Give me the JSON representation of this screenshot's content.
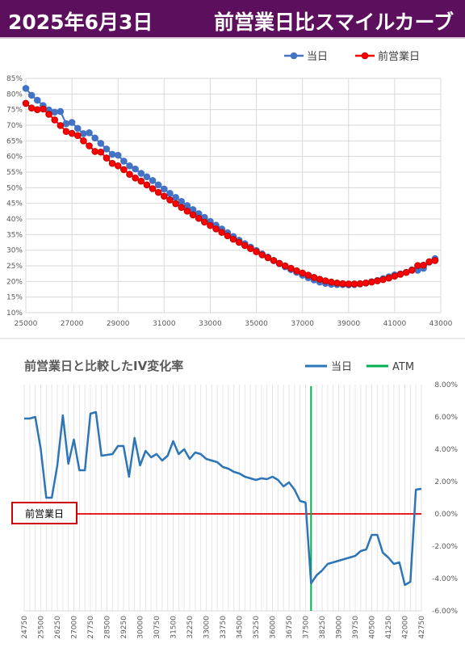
{
  "header": {
    "date": "2025年6月3日",
    "title": "前営業日比スマイルカーブ"
  },
  "chart_data": [
    {
      "type": "scatter",
      "title": "",
      "legend_position": "top-right",
      "xlim": [
        25000,
        43000
      ],
      "ylim": [
        10,
        85
      ],
      "x_ticks": [
        "25000",
        "27000",
        "29000",
        "31000",
        "33000",
        "35000",
        "37000",
        "39000",
        "41000",
        "43000"
      ],
      "y_ticks": [
        "10%",
        "15%",
        "20%",
        "25%",
        "30%",
        "35%",
        "40%",
        "45%",
        "50%",
        "55%",
        "60%",
        "65%",
        "70%",
        "75%",
        "80%",
        "85%"
      ],
      "colors": {
        "today": "#4472c4",
        "previous": "#ff0000"
      },
      "x": [
        25000,
        25250,
        25500,
        25750,
        26000,
        26250,
        26500,
        26750,
        27000,
        27250,
        27500,
        27750,
        28000,
        28250,
        28500,
        28750,
        29000,
        29250,
        29500,
        29750,
        30000,
        30250,
        30500,
        30750,
        31000,
        31250,
        31500,
        31750,
        32000,
        32250,
        32500,
        32750,
        33000,
        33250,
        33500,
        33750,
        34000,
        34250,
        34500,
        34750,
        35000,
        35250,
        35500,
        35750,
        36000,
        36250,
        36500,
        36750,
        37000,
        37250,
        37500,
        37750,
        38000,
        38250,
        38500,
        38750,
        39000,
        39250,
        39500,
        39750,
        40000,
        40250,
        40500,
        40750,
        41000,
        41250,
        41500,
        41750,
        42000,
        42250,
        42500,
        42750
      ],
      "series": [
        {
          "name": "当日",
          "values": [
            81.8,
            79.6,
            78.0,
            76.3,
            74.9,
            74.2,
            74.4,
            70.5,
            70.9,
            69.0,
            67.3,
            67.6,
            65.9,
            64.2,
            62.4,
            60.7,
            60.4,
            58.5,
            57.0,
            56.0,
            54.6,
            53.5,
            52.3,
            50.9,
            49.6,
            48.2,
            46.9,
            45.6,
            44.3,
            43.0,
            41.7,
            40.5,
            39.2,
            38.0,
            36.8,
            35.6,
            34.4,
            33.2,
            32.1,
            31.0,
            29.9,
            28.8,
            27.8,
            26.7,
            25.7,
            24.7,
            23.8,
            22.9,
            22.0,
            21.2,
            20.5,
            19.8,
            19.4,
            19.1,
            19.0,
            19.0,
            18.9,
            19.0,
            19.2,
            19.5,
            19.9,
            20.3,
            20.9,
            21.5,
            22.1,
            22.4,
            22.9,
            23.7,
            23.6,
            24.2,
            26.2,
            27.3
          ]
        },
        {
          "name": "前営業日",
          "values": [
            77.0,
            75.5,
            75.0,
            75.2,
            73.5,
            71.7,
            69.9,
            68.0,
            67.4,
            66.7,
            65.0,
            63.4,
            61.6,
            61.4,
            59.5,
            57.8,
            57.0,
            55.8,
            54.3,
            53.1,
            52.1,
            50.9,
            49.7,
            48.5,
            47.3,
            46.1,
            44.9,
            43.7,
            42.5,
            41.3,
            40.2,
            39.0,
            37.9,
            36.8,
            35.7,
            34.6,
            33.5,
            32.5,
            31.5,
            30.5,
            29.5,
            28.5,
            27.6,
            26.7,
            25.8,
            25.0,
            24.2,
            23.4,
            22.7,
            22.0,
            21.3,
            20.7,
            20.2,
            19.8,
            19.5,
            19.3,
            19.2,
            19.2,
            19.3,
            19.5,
            19.8,
            20.2,
            20.6,
            21.1,
            21.7,
            22.3,
            22.9,
            23.6,
            25.1,
            25.2,
            26.3,
            26.7
          ]
        }
      ]
    },
    {
      "type": "line",
      "title": "前営業日と比較したIV変化率",
      "legend_position": "top-right",
      "ylim": [
        -6,
        8
      ],
      "y_axis_side": "right",
      "y_ticks": [
        "8.00%",
        "6.00%",
        "4.00%",
        "2.00%",
        "0.00%",
        "-2.00%",
        "-4.00%",
        "-6.00%"
      ],
      "x_ticks": [
        "24750",
        "25000",
        "25250",
        "25500",
        "25750",
        "26000",
        "26250",
        "26500",
        "26750",
        "27000",
        "27250",
        "27500",
        "27750",
        "28000",
        "28250",
        "28500",
        "28750",
        "29000",
        "29250",
        "29500",
        "29750",
        "30000",
        "30250",
        "30500",
        "30750",
        "31000",
        "31250",
        "31500",
        "31750",
        "32000",
        "32250",
        "32500",
        "32750",
        "33000",
        "33250",
        "33500",
        "33750",
        "34000",
        "34250",
        "34500",
        "34750",
        "35000",
        "35250",
        "35500",
        "35750",
        "36000",
        "36250",
        "36500",
        "36750",
        "37000",
        "37250",
        "37500",
        "37750",
        "38000",
        "38250",
        "38500",
        "38750",
        "39000",
        "39250",
        "39500",
        "39750",
        "40000",
        "40250",
        "40500",
        "40750",
        "41000",
        "41250",
        "41500",
        "41750",
        "42000",
        "42250",
        "42500",
        "42750"
      ],
      "shown_tick_labels": [
        "24750",
        "25500",
        "26250",
        "27000",
        "27750",
        "28500",
        "29250",
        "30000",
        "30750",
        "31500",
        "32250",
        "33000",
        "33750",
        "34500",
        "35250",
        "36000",
        "36750",
        "37500",
        "38250",
        "39000",
        "39750",
        "40500",
        "41250",
        "42000",
        "42750"
      ],
      "atm": 37750,
      "reference_label": "前営業日",
      "colors": {
        "today": "#2e75b6",
        "atm": "#00b050",
        "zero_line": "#e00000"
      },
      "series": [
        {
          "name": "当日",
          "values": [
            5.9,
            5.9,
            6.0,
            4.0,
            1.0,
            1.0,
            3.0,
            6.1,
            3.1,
            4.6,
            2.7,
            2.7,
            6.2,
            6.3,
            3.6,
            3.65,
            3.7,
            4.2,
            4.2,
            2.3,
            4.7,
            3.0,
            3.9,
            3.5,
            3.7,
            3.3,
            3.6,
            4.5,
            3.7,
            4.0,
            3.4,
            3.8,
            3.7,
            3.4,
            3.3,
            3.2,
            2.9,
            2.8,
            2.6,
            2.5,
            2.3,
            2.2,
            2.1,
            2.2,
            2.15,
            2.3,
            2.1,
            1.7,
            1.95,
            1.5,
            0.8,
            0.7,
            -4.3,
            -3.8,
            -3.5,
            -3.1,
            -3.0,
            -2.9,
            -2.8,
            -2.7,
            -2.6,
            -2.3,
            -2.2,
            -1.3,
            -1.3,
            -2.4,
            -2.7,
            -3.1,
            -3.0,
            -4.4,
            -4.2,
            1.5,
            1.55
          ]
        },
        {
          "name": "ATM",
          "values": []
        }
      ]
    }
  ]
}
